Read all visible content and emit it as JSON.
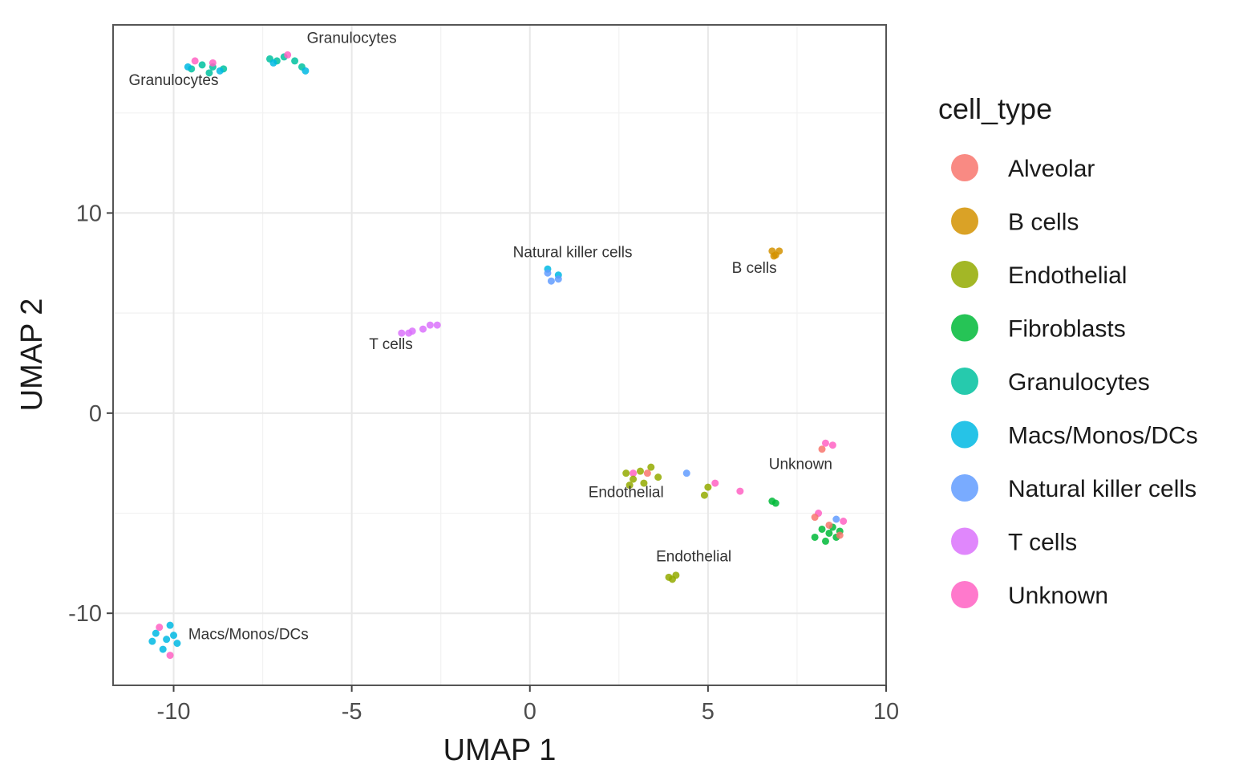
{
  "chart_data": {
    "type": "scatter",
    "title": "",
    "xlabel": "UMAP 1",
    "ylabel": "UMAP 2",
    "xlim": [
      -11.7,
      10
    ],
    "ylim": [
      -13.6,
      19.4
    ],
    "x_ticks": [
      -10,
      -5,
      0,
      5,
      10
    ],
    "y_ticks": [
      -10,
      0,
      10
    ],
    "x_tick_labels": [
      "-10",
      "-5",
      "0",
      "5",
      "10"
    ],
    "y_tick_labels": [
      "-10",
      "0",
      "10"
    ],
    "grid": true,
    "legend": {
      "title": "cell_type",
      "placement": "right",
      "entries": [
        {
          "name": "Alveolar",
          "color": "#F8766D"
        },
        {
          "name": "B cells",
          "color": "#D39200"
        },
        {
          "name": "Endothelial",
          "color": "#93AA00"
        },
        {
          "name": "Fibroblasts",
          "color": "#00BA38"
        },
        {
          "name": "Granulocytes",
          "color": "#00C19F"
        },
        {
          "name": "Macs/Monos/DCs",
          "color": "#00B9E3"
        },
        {
          "name": "Natural killer cells",
          "color": "#619CFF"
        },
        {
          "name": "T cells",
          "color": "#DB72FB"
        },
        {
          "name": "Unknown",
          "color": "#FF61C3"
        }
      ]
    },
    "series": [
      {
        "name": "Granulocytes",
        "points": [
          [
            -9.5,
            17.2
          ],
          [
            -9.2,
            17.4
          ],
          [
            -8.9,
            17.3
          ],
          [
            -8.6,
            17.2
          ],
          [
            -9.0,
            17.0
          ],
          [
            -7.3,
            17.7
          ],
          [
            -6.9,
            17.8
          ],
          [
            -6.6,
            17.6
          ],
          [
            -6.4,
            17.3
          ],
          [
            -7.1,
            17.6
          ]
        ]
      },
      {
        "name": "Macs/Monos/DCs",
        "points": [
          [
            -9.6,
            17.3
          ],
          [
            -8.7,
            17.1
          ],
          [
            -7.2,
            17.5
          ],
          [
            -6.3,
            17.1
          ],
          [
            -10.5,
            -11.0
          ],
          [
            -10.2,
            -11.3
          ],
          [
            -10.0,
            -11.1
          ],
          [
            -10.3,
            -11.8
          ],
          [
            -10.1,
            -10.6
          ],
          [
            -10.6,
            -11.4
          ],
          [
            -9.9,
            -11.5
          ],
          [
            0.5,
            7.2
          ],
          [
            0.8,
            6.9
          ]
        ]
      },
      {
        "name": "Unknown",
        "points": [
          [
            -9.4,
            17.6
          ],
          [
            -8.9,
            17.5
          ],
          [
            -6.8,
            17.9
          ],
          [
            -10.1,
            -12.1
          ],
          [
            -10.4,
            -10.7
          ],
          [
            8.3,
            -1.5
          ],
          [
            8.5,
            -1.6
          ],
          [
            5.2,
            -3.5
          ],
          [
            5.9,
            -3.9
          ],
          [
            8.8,
            -5.4
          ],
          [
            8.1,
            -5.0
          ],
          [
            2.9,
            -3.0
          ]
        ]
      },
      {
        "name": "Natural killer cells",
        "points": [
          [
            0.6,
            6.6
          ],
          [
            0.8,
            6.7
          ],
          [
            0.5,
            7.0
          ],
          [
            4.4,
            -3.0
          ],
          [
            8.6,
            -5.3
          ]
        ]
      },
      {
        "name": "T cells",
        "points": [
          [
            -3.6,
            4.0
          ],
          [
            -3.3,
            4.1
          ],
          [
            -3.0,
            4.2
          ],
          [
            -2.8,
            4.4
          ],
          [
            -2.6,
            4.4
          ],
          [
            -3.4,
            4.0
          ]
        ]
      },
      {
        "name": "B cells",
        "points": [
          [
            6.8,
            8.1
          ],
          [
            6.9,
            7.9
          ],
          [
            7.0,
            8.1
          ],
          [
            6.85,
            7.85
          ]
        ]
      },
      {
        "name": "Endothelial",
        "points": [
          [
            2.7,
            -3.0
          ],
          [
            2.9,
            -3.3
          ],
          [
            3.1,
            -2.9
          ],
          [
            3.4,
            -2.7
          ],
          [
            3.6,
            -3.2
          ],
          [
            3.2,
            -3.5
          ],
          [
            2.8,
            -3.6
          ],
          [
            5.0,
            -3.7
          ],
          [
            4.9,
            -4.1
          ],
          [
            3.9,
            -8.2
          ],
          [
            4.0,
            -8.3
          ],
          [
            4.1,
            -8.1
          ]
        ]
      },
      {
        "name": "Fibroblasts",
        "points": [
          [
            8.2,
            -5.8
          ],
          [
            8.4,
            -6.0
          ],
          [
            8.6,
            -6.2
          ],
          [
            8.5,
            -5.7
          ],
          [
            8.3,
            -6.4
          ],
          [
            8.7,
            -5.9
          ],
          [
            8.0,
            -6.2
          ],
          [
            6.9,
            -4.5
          ],
          [
            6.8,
            -4.4
          ]
        ]
      },
      {
        "name": "Alveolar",
        "points": [
          [
            8.4,
            -5.6
          ],
          [
            8.7,
            -6.1
          ],
          [
            8.0,
            -5.2
          ],
          [
            8.2,
            -1.8
          ],
          [
            3.3,
            -3.0
          ]
        ]
      }
    ],
    "annotations": [
      {
        "text": "Granulocytes",
        "x": -5.0,
        "y": 18.5
      },
      {
        "text": "Granulocytes",
        "x": -10.0,
        "y": 16.4
      },
      {
        "text": "Natural killer cells",
        "x": 1.2,
        "y": 7.8
      },
      {
        "text": "B cells",
        "x": 6.3,
        "y": 7.0
      },
      {
        "text": "T cells",
        "x": -3.9,
        "y": 3.2
      },
      {
        "text": "Unknown",
        "x": 7.6,
        "y": -2.8
      },
      {
        "text": "Endothelial",
        "x": 2.7,
        "y": -4.2
      },
      {
        "text": "Endothelial",
        "x": 4.6,
        "y": -7.4
      },
      {
        "text": "Macs/Monos/DCs",
        "x": -7.9,
        "y": -11.3
      }
    ]
  }
}
